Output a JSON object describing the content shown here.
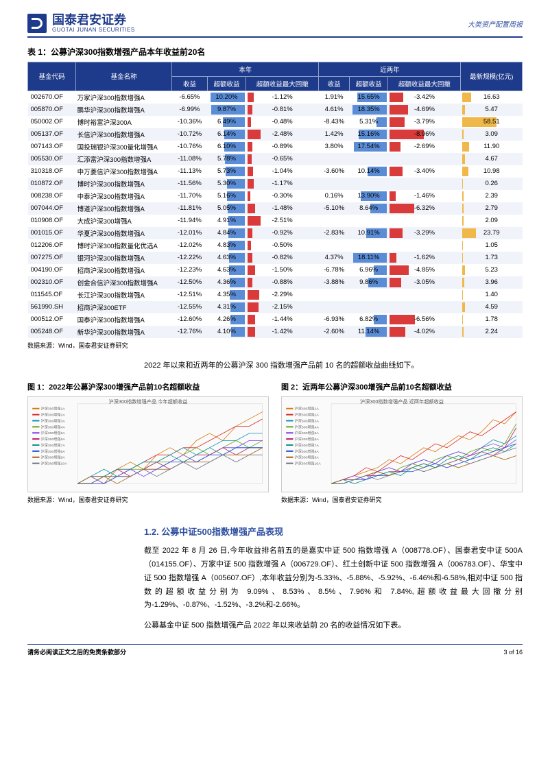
{
  "header": {
    "logo_cn": "国泰君安证券",
    "logo_en": "GUOTAI JUNAN SECURITIES",
    "right": "大类资产配置周报"
  },
  "table1": {
    "title": "表 1：公募沪深300指数增强产品本年收益前20名",
    "header_group1": "本年",
    "header_group2": "近两年",
    "cols": [
      "基金代码",
      "基金名称",
      "收益",
      "超额收益",
      "超额收益最大回撤",
      "收益",
      "超额收益",
      "超额收益最大回撤",
      "最新规模(亿元)"
    ],
    "col_code": "基金代码",
    "col_name": "基金名称",
    "col_return": "收益",
    "col_excess": "超额收益",
    "col_dd": "超额收益最大回撤",
    "col_return2": "收益",
    "col_excess2": "超额收益",
    "col_dd2": "超额收益最大回撤",
    "col_aum": "最新规模(亿元)",
    "rows": [
      {
        "code": "002670.OF",
        "name": "万家沪深300指数增强A",
        "r": "-6.65%",
        "e": "10.20%",
        "d": "-1.12%",
        "r2": "1.91%",
        "e2": "15.65%",
        "d2": "-3.42%",
        "a": "16.63",
        "eb": 100,
        "db": 18,
        "e2b": 85,
        "d2b": 40,
        "ab": 27
      },
      {
        "code": "005870.OF",
        "name": "鹏华沪深300指数增强A",
        "r": "-6.99%",
        "e": "9.87%",
        "d": "-0.81%",
        "r2": "4.61%",
        "e2": "18.35%",
        "d2": "-4.69%",
        "a": "5.47",
        "eb": 97,
        "db": 14,
        "e2b": 100,
        "d2b": 54,
        "ab": 9
      },
      {
        "code": "050002.OF",
        "name": "博时裕富沪深300A",
        "r": "-10.36%",
        "e": "6.49%",
        "d": "-0.48%",
        "r2": "-8.43%",
        "e2": "5.31%",
        "d2": "-3.79%",
        "a": "58.51",
        "eb": 64,
        "db": 10,
        "e2b": 29,
        "d2b": 44,
        "ab": 100
      },
      {
        "code": "005137.OF",
        "name": "长信沪深300指数增强A",
        "r": "-10.72%",
        "e": "6.14%",
        "d": "-2.48%",
        "r2": "1.42%",
        "e2": "15.16%",
        "d2": "-8.96%",
        "a": "3.09",
        "eb": 60,
        "db": 38,
        "e2b": 82,
        "d2b": 100,
        "ab": 5
      },
      {
        "code": "007143.OF",
        "name": "国投瑞银沪深300量化增强A",
        "r": "-10.76%",
        "e": "6.10%",
        "d": "-0.89%",
        "r2": "3.80%",
        "e2": "17.54%",
        "d2": "-2.69%",
        "a": "11.90",
        "eb": 60,
        "db": 15,
        "e2b": 95,
        "d2b": 32,
        "ab": 20
      },
      {
        "code": "005530.OF",
        "name": "汇添富沪深300指数增强A",
        "r": "-11.08%",
        "e": "5.78%",
        "d": "-0.65%",
        "r2": "",
        "e2": "",
        "d2": "",
        "a": "4.67",
        "eb": 57,
        "db": 12,
        "e2b": 0,
        "d2b": 0,
        "ab": 8
      },
      {
        "code": "310318.OF",
        "name": "中万菱信沪深300指数增强A",
        "r": "-11.13%",
        "e": "5.73%",
        "d": "-1.04%",
        "r2": "-3.60%",
        "e2": "10.14%",
        "d2": "-3.40%",
        "a": "10.98",
        "eb": 56,
        "db": 17,
        "e2b": 55,
        "d2b": 39,
        "ab": 18
      },
      {
        "code": "010872.OF",
        "name": "博时沪深300指数增强A",
        "r": "-11.56%",
        "e": "5.30%",
        "d": "-1.17%",
        "r2": "",
        "e2": "",
        "d2": "",
        "a": "0.26",
        "eb": 52,
        "db": 19,
        "e2b": 0,
        "d2b": 0,
        "ab": 1
      },
      {
        "code": "008238.OF",
        "name": "中泰沪深300指数增强A",
        "r": "-11.70%",
        "e": "5.16%",
        "d": "-0.30%",
        "r2": "0.16%",
        "e2": "13.90%",
        "d2": "-1.46%",
        "a": "2.39",
        "eb": 51,
        "db": 8,
        "e2b": 76,
        "d2b": 18,
        "ab": 4
      },
      {
        "code": "007044.OF",
        "name": "博道沪深300指数增强A",
        "r": "-11.81%",
        "e": "5.05%",
        "d": "-1.48%",
        "r2": "-5.10%",
        "e2": "8.64%",
        "d2": "-6.32%",
        "a": "2.79",
        "eb": 50,
        "db": 23,
        "e2b": 47,
        "d2b": 72,
        "ab": 5
      },
      {
        "code": "010908.OF",
        "name": "大成沪深300增强A",
        "r": "-11.94%",
        "e": "4.91%",
        "d": "-2.51%",
        "r2": "",
        "e2": "",
        "d2": "",
        "a": "2.09",
        "eb": 48,
        "db": 38,
        "e2b": 0,
        "d2b": 0,
        "ab": 4
      },
      {
        "code": "001015.OF",
        "name": "华夏沪深300指数增强A",
        "r": "-12.01%",
        "e": "4.84%",
        "d": "-0.92%",
        "r2": "-2.83%",
        "e2": "10.91%",
        "d2": "-3.29%",
        "a": "23.79",
        "eb": 48,
        "db": 15,
        "e2b": 59,
        "d2b": 38,
        "ab": 40
      },
      {
        "code": "012206.OF",
        "name": "博时沪深300指数量化优选A",
        "r": "-12.02%",
        "e": "4.83%",
        "d": "-0.50%",
        "r2": "",
        "e2": "",
        "d2": "",
        "a": "1.05",
        "eb": 47,
        "db": 10,
        "e2b": 0,
        "d2b": 0,
        "ab": 2
      },
      {
        "code": "007275.OF",
        "name": "银河沪深300指数增强A",
        "r": "-12.22%",
        "e": "4.63%",
        "d": "-0.82%",
        "r2": "4.37%",
        "e2": "18.11%",
        "d2": "-1.62%",
        "a": "1.73",
        "eb": 45,
        "db": 14,
        "e2b": 98,
        "d2b": 20,
        "ab": 3
      },
      {
        "code": "004190.OF",
        "name": "招商沪深300指数增强A",
        "r": "-12.23%",
        "e": "4.63%",
        "d": "-1.50%",
        "r2": "-6.78%",
        "e2": "6.96%",
        "d2": "-4.85%",
        "a": "5.23",
        "eb": 45,
        "db": 23,
        "e2b": 38,
        "d2b": 56,
        "ab": 9
      },
      {
        "code": "002310.OF",
        "name": "创金合信沪深300指数增强A",
        "r": "-12.50%",
        "e": "4.36%",
        "d": "-0.88%",
        "r2": "-3.88%",
        "e2": "9.86%",
        "d2": "-3.05%",
        "a": "3.96",
        "eb": 43,
        "db": 15,
        "e2b": 54,
        "d2b": 35,
        "ab": 7
      },
      {
        "code": "011545.OF",
        "name": "长江沪深300指数增强A",
        "r": "-12.51%",
        "e": "4.35%",
        "d": "-2.29%",
        "r2": "",
        "e2": "",
        "d2": "",
        "a": "1.40",
        "eb": 43,
        "db": 35,
        "e2b": 0,
        "d2b": 0,
        "ab": 3
      },
      {
        "code": "561990.SH",
        "name": "招商沪深300ETF",
        "r": "-12.55%",
        "e": "4.31%",
        "d": "-2.15%",
        "r2": "",
        "e2": "",
        "d2": "",
        "a": "4.59",
        "eb": 42,
        "db": 33,
        "e2b": 0,
        "d2b": 0,
        "ab": 8
      },
      {
        "code": "000512.OF",
        "name": "国泰沪深300指数增强A",
        "r": "-12.60%",
        "e": "4.26%",
        "d": "-1.44%",
        "r2": "-6.93%",
        "e2": "6.82%",
        "d2": "-6.56%",
        "a": "1.78",
        "eb": 42,
        "db": 22,
        "e2b": 37,
        "d2b": 75,
        "ab": 3
      },
      {
        "code": "005248.OF",
        "name": "新华沪深300指数增强A",
        "r": "-12.76%",
        "e": "4.10%",
        "d": "-1.42%",
        "r2": "-2.60%",
        "e2": "11.14%",
        "d2": "-4.02%",
        "a": "2.24",
        "eb": 40,
        "db": 22,
        "e2b": 61,
        "d2b": 46,
        "ab": 4
      }
    ],
    "source": "数据来源：Wind，国泰君安证券研究"
  },
  "caption1": "2022 年以来和近两年的公募沪深 300 指数增强产品前 10 名的超额收益曲线如下。",
  "chart1": {
    "title": "图 1：2022年公募沪深300增强产品前10名超额收益",
    "inner_title": "沪深300指数增强产品 今年超额收益",
    "source": "数据来源：Wind，国泰君安证券研究",
    "colors": [
      "#d97706",
      "#dc2626",
      "#0891b2",
      "#65a30d",
      "#7c3aed",
      "#be185d",
      "#0d9488",
      "#1d4ed8",
      "#a16207",
      "#6b7280"
    ],
    "series": [
      [
        0,
        1,
        0,
        2,
        3,
        2,
        4,
        5,
        4,
        6,
        7,
        6,
        8,
        9,
        10
      ],
      [
        0,
        0,
        1,
        2,
        2,
        3,
        4,
        4,
        5,
        5,
        6,
        7,
        8,
        8,
        9
      ],
      [
        0,
        1,
        2,
        1,
        2,
        3,
        3,
        4,
        5,
        4,
        5,
        6,
        6,
        7,
        7
      ],
      [
        0,
        0,
        1,
        1,
        2,
        2,
        3,
        3,
        4,
        5,
        4,
        5,
        6,
        5,
        6
      ],
      [
        0,
        1,
        0,
        1,
        2,
        1,
        2,
        3,
        4,
        3,
        4,
        5,
        5,
        6,
        6
      ],
      [
        0,
        0,
        1,
        2,
        1,
        2,
        3,
        2,
        3,
        4,
        4,
        5,
        4,
        5,
        5
      ],
      [
        0,
        1,
        1,
        2,
        2,
        3,
        3,
        4,
        3,
        4,
        5,
        4,
        5,
        5,
        5
      ],
      [
        0,
        0,
        0,
        1,
        1,
        2,
        2,
        3,
        3,
        3,
        4,
        4,
        5,
        5,
        5
      ],
      [
        0,
        1,
        1,
        0,
        1,
        2,
        2,
        2,
        3,
        3,
        3,
        4,
        4,
        4,
        5
      ],
      [
        0,
        0,
        1,
        1,
        1,
        2,
        1,
        2,
        3,
        2,
        3,
        4,
        3,
        4,
        4
      ]
    ]
  },
  "chart2": {
    "title": "图 2：近两年公募沪深300增强产品前10名超额收益",
    "inner_title": "沪深300指数增强产品 近两年超额收益",
    "source": "数据来源：Wind，国泰君安证券研究",
    "colors": [
      "#d97706",
      "#dc2626",
      "#0891b2",
      "#65a30d",
      "#7c3aed",
      "#be185d",
      "#0d9488",
      "#1d4ed8",
      "#a16207",
      "#6b7280"
    ],
    "series": [
      [
        0,
        1,
        2,
        3,
        4,
        6,
        5,
        7,
        9,
        8,
        10,
        12,
        11,
        13,
        16,
        15,
        18
      ],
      [
        0,
        1,
        2,
        4,
        3,
        5,
        7,
        6,
        8,
        10,
        9,
        11,
        13,
        12,
        14,
        16,
        18
      ],
      [
        0,
        1,
        1,
        2,
        3,
        4,
        3,
        5,
        6,
        5,
        7,
        8,
        7,
        9,
        11,
        10,
        12
      ],
      [
        0,
        0,
        1,
        2,
        3,
        2,
        4,
        5,
        4,
        6,
        7,
        6,
        8,
        9,
        8,
        10,
        15
      ],
      [
        0,
        1,
        2,
        1,
        3,
        4,
        3,
        5,
        6,
        5,
        7,
        8,
        7,
        9,
        10,
        9,
        11
      ],
      [
        0,
        1,
        1,
        2,
        2,
        3,
        3,
        4,
        5,
        4,
        5,
        6,
        7,
        8,
        7,
        9,
        14
      ],
      [
        0,
        1,
        0,
        1,
        2,
        3,
        2,
        4,
        5,
        4,
        6,
        7,
        6,
        8,
        9,
        8,
        10
      ],
      [
        0,
        0,
        1,
        1,
        2,
        2,
        3,
        3,
        4,
        5,
        4,
        5,
        6,
        7,
        8,
        9,
        10
      ],
      [
        0,
        1,
        1,
        2,
        3,
        2,
        3,
        4,
        3,
        4,
        5,
        4,
        5,
        6,
        7,
        6,
        7
      ],
      [
        0,
        0,
        1,
        2,
        1,
        2,
        3,
        4,
        3,
        4,
        5,
        6,
        5,
        6,
        7,
        8,
        9
      ]
    ]
  },
  "section12": {
    "heading": "1.2. 公募中证500指数增强产品表现",
    "p1": "截至 2022 年 8 月 26 日,今年收益排名前五的是嘉实中证 500 指数增强 A（008778.OF）、国泰君安中证 500A（014155.OF）、万家中证 500 指数增强 A（006729.OF）、红土创新中证 500 指数增强 A（006783.OF）、华宝中证 500 指数增强 A（005607.OF）,本年收益分别为-5.33%、-5.88%、-5.92%、-6.46%和-6.58%,相对中证 500 指数的超额收益分别为 9.09%、8.53%、8.5%、7.96%和 7.84%,超额收益最大回撤分别为-1.29%、-0.87%、-1.52%、-3.2%和-2.66%。",
    "p2": "公募基金中证 500 指数增强产品 2022 年以来收益前 20 名的收益情况如下表。"
  },
  "footer": {
    "left": "请务必阅读正文之后的免责条款部分",
    "right": "3 of 16"
  },
  "styling": {
    "bar_pos_color": "#5b8dd6",
    "bar_neg_color": "#d93b3b",
    "bar_aum_color": "#f0b849",
    "header_bg": "#1e3a8a",
    "brand_color": "#1e3a8a"
  }
}
